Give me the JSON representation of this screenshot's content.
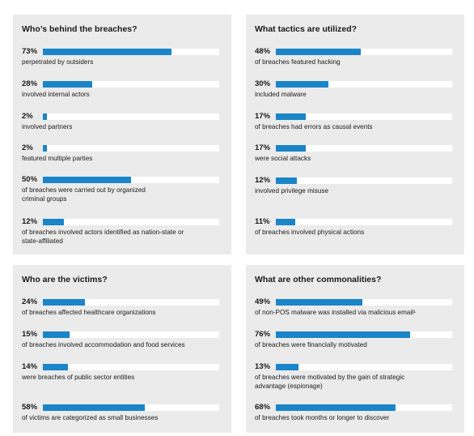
{
  "colors": {
    "panel_bg": "#ebebeb",
    "bar": "#1a85c8",
    "track": "#ffffff"
  },
  "chart_data": [
    {
      "type": "bar",
      "title": "Who’s behind the breaches?",
      "ylim": [
        0,
        100
      ],
      "stats": [
        {
          "value": 73,
          "label": "73%",
          "text": "perpetrated by outsiders"
        },
        {
          "value": 28,
          "label": "28%",
          "text": "involved internal actors"
        },
        {
          "value": 2,
          "label": "2%",
          "text": "involved partners"
        },
        {
          "value": 2,
          "label": "2%",
          "text": "featured multiple parties"
        },
        {
          "value": 50,
          "label": "50%",
          "text": "of breaches were carried out by organized\ncriminal groups"
        },
        {
          "value": 12,
          "label": "12%",
          "text": "of breaches involved actors identified as nation-state or\nstate-affiliated"
        }
      ]
    },
    {
      "type": "bar",
      "title": "What tactics are utilized?",
      "ylim": [
        0,
        100
      ],
      "stats": [
        {
          "value": 48,
          "label": "48%",
          "text": "of breaches featured hacking"
        },
        {
          "value": 30,
          "label": "30%",
          "text": "included malware"
        },
        {
          "value": 17,
          "label": "17%",
          "text": "of breaches had errors as causal events"
        },
        {
          "value": 17,
          "label": "17%",
          "text": "were social attacks"
        },
        {
          "value": 12,
          "label": "12%",
          "text": "involved privilege misuse"
        },
        {
          "value": 11,
          "label": "11%",
          "text": "of breaches involved physical actions"
        }
      ]
    },
    {
      "type": "bar",
      "title": "Who are the victims?",
      "ylim": [
        0,
        100
      ],
      "stats": [
        {
          "value": 24,
          "label": "24%",
          "text": "of breaches affected healthcare organizations"
        },
        {
          "value": 15,
          "label": "15%",
          "text": "of breaches involved accommodation and food services"
        },
        {
          "value": 14,
          "label": "14%",
          "text": "were breaches of public sector entities"
        },
        {
          "value": 58,
          "label": "58%",
          "text": "of victims are categorized as small businesses"
        }
      ]
    },
    {
      "type": "bar",
      "title": "What are other commonalities?",
      "ylim": [
        0,
        100
      ],
      "stats": [
        {
          "value": 49,
          "label": "49%",
          "text": "of non-POS malware was installed via malicious email¹"
        },
        {
          "value": 76,
          "label": "76%",
          "text": "of breaches were financially motivated"
        },
        {
          "value": 13,
          "label": "13%",
          "text": "of breaches were motivated by the gain of strategic\nadvantage (espionage)"
        },
        {
          "value": 68,
          "label": "68%",
          "text": "of breaches took months or longer to discover"
        }
      ]
    }
  ]
}
